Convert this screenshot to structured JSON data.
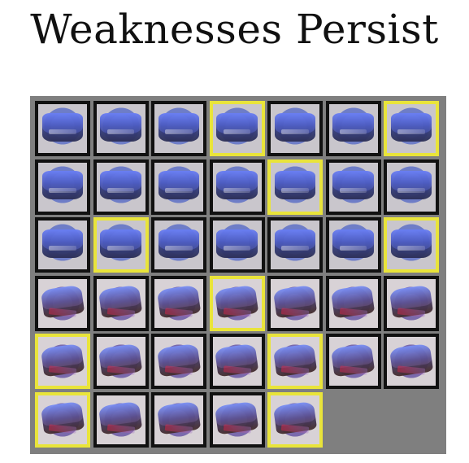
{
  "title": "Weaknesses Persist",
  "grid": {
    "columns": 7,
    "rows": 6,
    "tile_count": 40,
    "highlight_color": "#e9e43a",
    "border_color": "#111111",
    "background_color": "#7f7f7f",
    "tiles": [
      {
        "index": 0,
        "highlight": false
      },
      {
        "index": 1,
        "highlight": false
      },
      {
        "index": 2,
        "highlight": false
      },
      {
        "index": 3,
        "highlight": true
      },
      {
        "index": 4,
        "highlight": false
      },
      {
        "index": 5,
        "highlight": false
      },
      {
        "index": 6,
        "highlight": true
      },
      {
        "index": 7,
        "highlight": false
      },
      {
        "index": 8,
        "highlight": false
      },
      {
        "index": 9,
        "highlight": false
      },
      {
        "index": 10,
        "highlight": false
      },
      {
        "index": 11,
        "highlight": true
      },
      {
        "index": 12,
        "highlight": false
      },
      {
        "index": 13,
        "highlight": false
      },
      {
        "index": 14,
        "highlight": false
      },
      {
        "index": 15,
        "highlight": true
      },
      {
        "index": 16,
        "highlight": false
      },
      {
        "index": 17,
        "highlight": false
      },
      {
        "index": 18,
        "highlight": false
      },
      {
        "index": 19,
        "highlight": false
      },
      {
        "index": 20,
        "highlight": true
      },
      {
        "index": 21,
        "highlight": false
      },
      {
        "index": 22,
        "highlight": false
      },
      {
        "index": 23,
        "highlight": false
      },
      {
        "index": 24,
        "highlight": true
      },
      {
        "index": 25,
        "highlight": false
      },
      {
        "index": 26,
        "highlight": false
      },
      {
        "index": 27,
        "highlight": false
      },
      {
        "index": 28,
        "highlight": true
      },
      {
        "index": 29,
        "highlight": false
      },
      {
        "index": 30,
        "highlight": false
      },
      {
        "index": 31,
        "highlight": false
      },
      {
        "index": 32,
        "highlight": true
      },
      {
        "index": 33,
        "highlight": false
      },
      {
        "index": 34,
        "highlight": false
      },
      {
        "index": 35,
        "highlight": true
      },
      {
        "index": 36,
        "highlight": false
      },
      {
        "index": 37,
        "highlight": false
      },
      {
        "index": 38,
        "highlight": false
      },
      {
        "index": 39,
        "highlight": true
      }
    ]
  }
}
